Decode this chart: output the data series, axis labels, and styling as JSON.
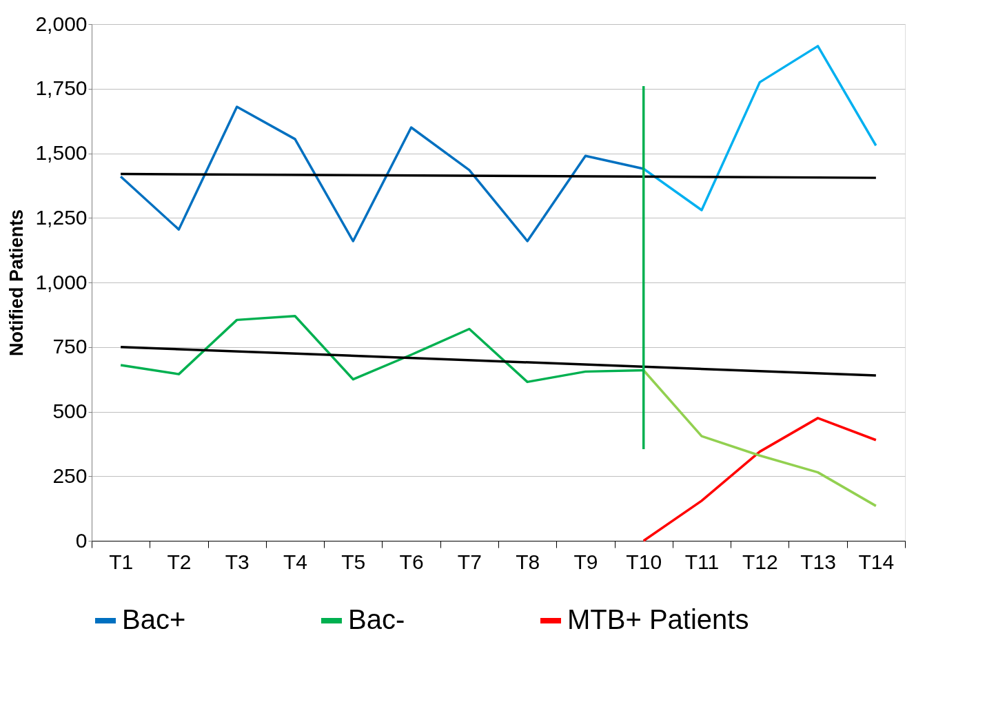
{
  "chart_data": {
    "type": "line",
    "ylabel": "Notified Patients",
    "categories": [
      "T1",
      "T2",
      "T3",
      "T4",
      "T5",
      "T6",
      "T7",
      "T8",
      "T9",
      "T10",
      "T11",
      "T12",
      "T13",
      "T14"
    ],
    "series": [
      {
        "name": "Bac+",
        "color": "#0070c0",
        "values": [
          1410,
          1205,
          1680,
          1555,
          1160,
          1600,
          1435,
          1160,
          1490,
          1440,
          null,
          null,
          null,
          null
        ]
      },
      {
        "name": "Bac-",
        "color": "#00b050",
        "values": [
          680,
          645,
          855,
          870,
          625,
          720,
          820,
          615,
          655,
          660,
          null,
          null,
          null,
          null
        ]
      },
      {
        "name": "MTB+ Patients",
        "color": "#ff0000",
        "values": [
          null,
          null,
          null,
          null,
          null,
          null,
          null,
          null,
          null,
          0,
          155,
          345,
          475,
          390
        ]
      },
      {
        "color": "#00b0f0",
        "values": [
          null,
          null,
          null,
          null,
          null,
          null,
          null,
          null,
          null,
          1440,
          1280,
          1775,
          1915,
          1530
        ]
      },
      {
        "color": "#92d050",
        "values": [
          null,
          null,
          null,
          null,
          null,
          null,
          null,
          null,
          null,
          660,
          405,
          330,
          265,
          135
        ]
      },
      {
        "color": "#000000",
        "x": [
          "T1",
          "T14"
        ],
        "values": [
          1420,
          1405
        ]
      },
      {
        "color": "#000000",
        "x": [
          "T1",
          "T14"
        ],
        "values": [
          750,
          640
        ]
      },
      {
        "color": "#00b050",
        "x": [
          "T10",
          "T10"
        ],
        "values": [
          1760,
          355
        ]
      }
    ],
    "ylim": [
      0,
      2000
    ],
    "yticks": [
      0,
      250,
      500,
      750,
      {
        "value": 1000,
        "label": "1,000"
      },
      {
        "value": 1250,
        "label": "1,250"
      },
      {
        "value": 1500,
        "label": "1,500"
      },
      {
        "value": 1750,
        "label": "1,750"
      },
      {
        "value": 2000,
        "label": "2,000"
      }
    ],
    "grid": "y",
    "legend": "bottom",
    "marker": "none",
    "line_style": "solid"
  }
}
